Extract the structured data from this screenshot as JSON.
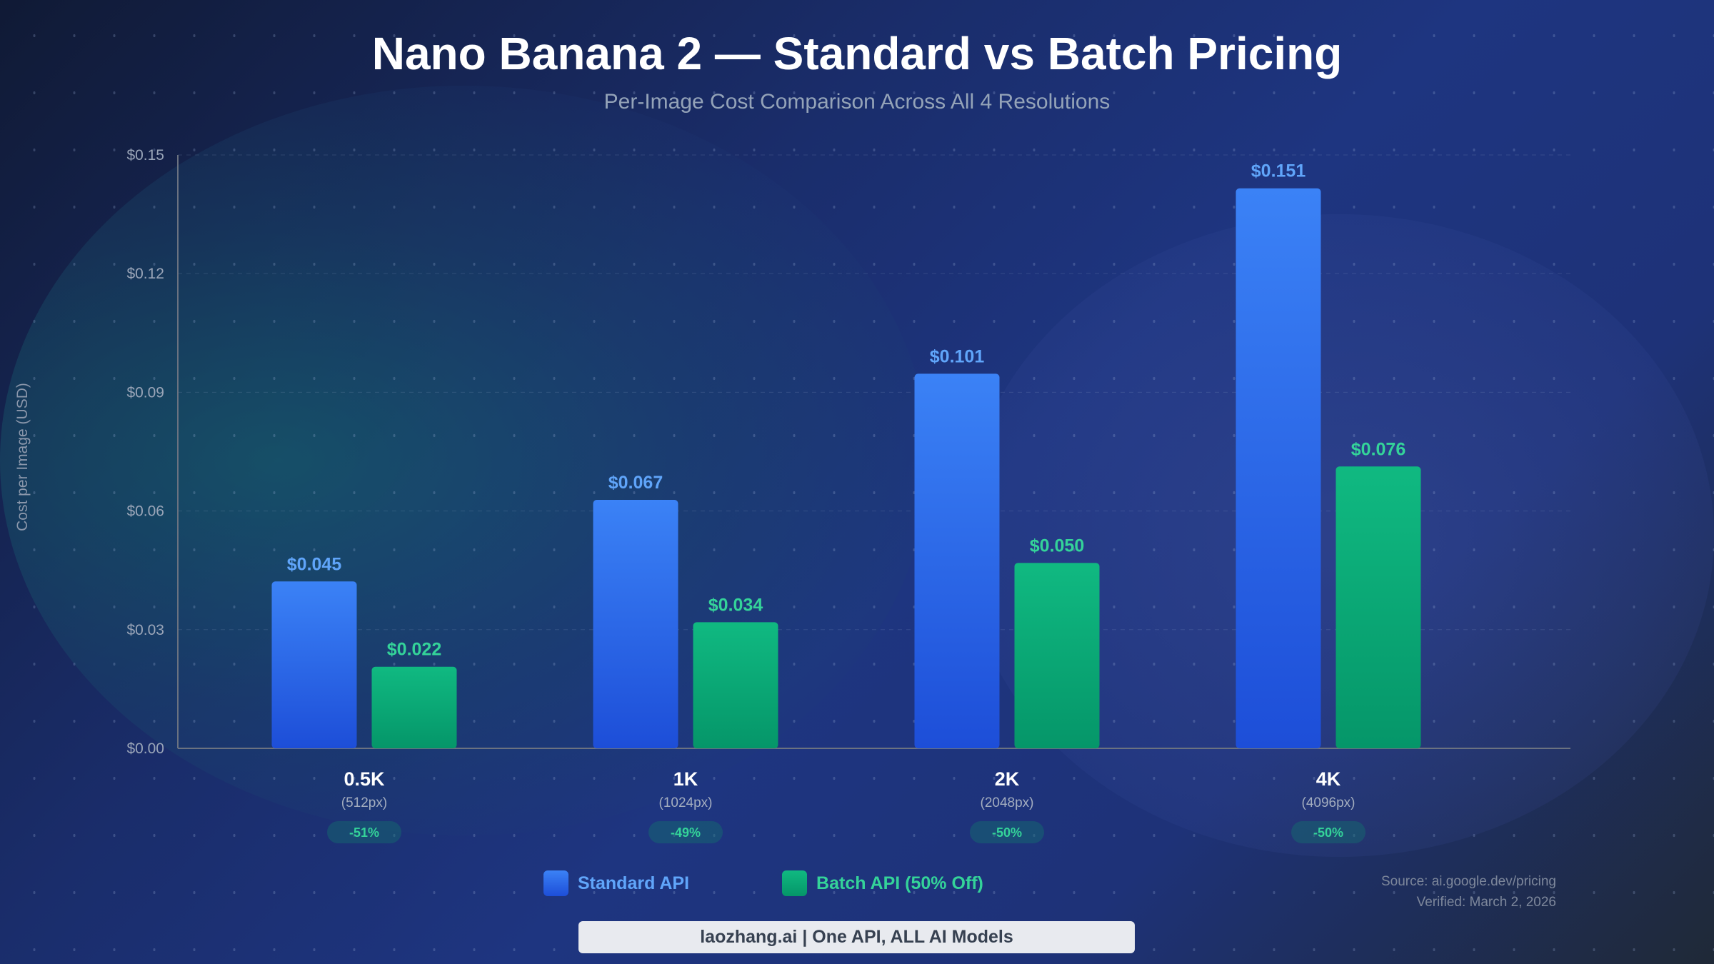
{
  "header": {
    "title": "Nano Banana 2 — Standard vs Batch Pricing",
    "subtitle": "Per-Image Cost Comparison Across All 4 Resolutions"
  },
  "chart_data": {
    "type": "bar",
    "title": "Nano Banana 2 — Standard vs Batch Pricing",
    "subtitle": "Per-Image Cost Comparison Across All 4 Resolutions",
    "xlabel": "",
    "ylabel": "Cost per Image (USD)",
    "ylim": [
      0,
      0.15
    ],
    "yticks": [
      "$0.00",
      "$0.03",
      "$0.06",
      "$0.09",
      "$0.12",
      "$0.15"
    ],
    "ytick_values": [
      0,
      0.03,
      0.06,
      0.09,
      0.12,
      0.15
    ],
    "grid": true,
    "legend_position": "bottom",
    "categories": [
      "0.5K",
      "1K",
      "2K",
      "4K"
    ],
    "category_sublabels": [
      "(512px)",
      "(1024px)",
      "(2048px)",
      "(4096px)"
    ],
    "savings_badges": [
      "-51%",
      "-49%",
      "-50%",
      "-50%"
    ],
    "series": [
      {
        "name": "Standard API",
        "color": "#3b82f6",
        "label_color": "#60a5fa",
        "values": [
          0.045,
          0.067,
          0.101,
          0.151
        ],
        "data_labels": [
          "$0.045",
          "$0.067",
          "$0.101",
          "$0.151"
        ]
      },
      {
        "name": "Batch API (50% Off)",
        "color": "#10b981",
        "label_color": "#34d399",
        "values": [
          0.022,
          0.034,
          0.05,
          0.076
        ],
        "data_labels": [
          "$0.022",
          "$0.034",
          "$0.050",
          "$0.076"
        ]
      }
    ]
  },
  "source": {
    "line1": "Source: ai.google.dev/pricing",
    "line2": "Verified: March 2, 2026"
  },
  "footer": {
    "text": "laozhang.ai | One API, ALL AI Models"
  }
}
